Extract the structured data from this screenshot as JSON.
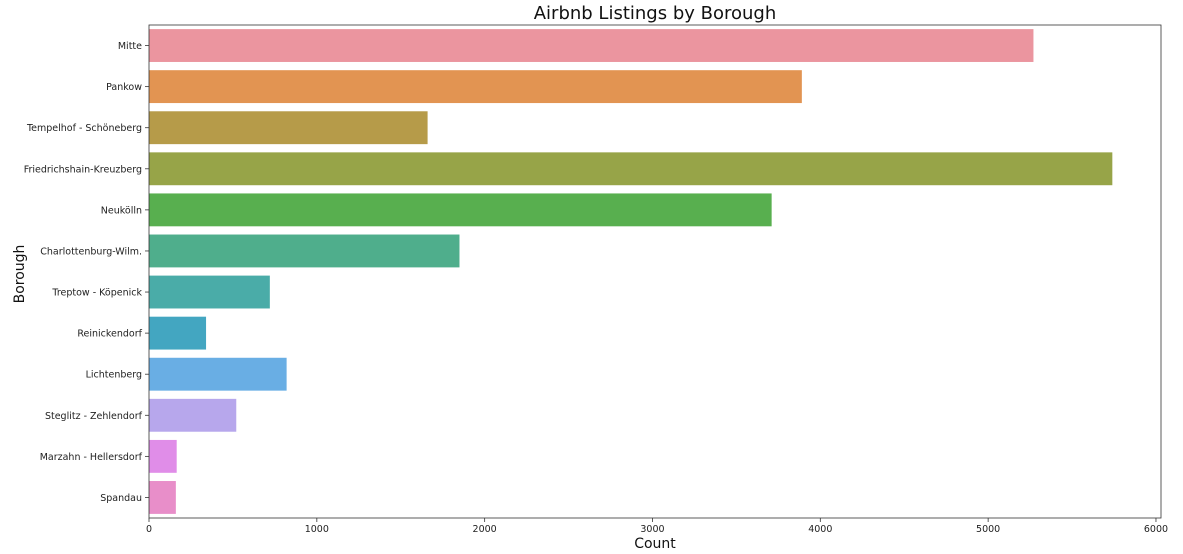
{
  "chart_data": {
    "type": "bar",
    "orientation": "horizontal",
    "title": "Airbnb Listings by Borough",
    "xlabel": "Count",
    "ylabel": "Borough",
    "xlim": [
      0,
      6030
    ],
    "xticks": [
      0,
      1000,
      2000,
      3000,
      4000,
      5000,
      6000
    ],
    "grid": false,
    "categories": [
      "Mitte",
      "Pankow",
      "Tempelhof - Schöneberg",
      "Friedrichshain-Kreuzberg",
      "Neukölln",
      "Charlottenburg-Wilm.",
      "Treptow - Köpenick",
      "Reinickendorf",
      "Lichtenberg",
      "Steglitz - Zehlendorf",
      "Marzahn - Hellersdorf",
      "Spandau"
    ],
    "values": [
      5270,
      3890,
      1660,
      5740,
      3710,
      1850,
      720,
      340,
      820,
      520,
      165,
      160
    ],
    "colors": [
      "#eb959f",
      "#e29452",
      "#b69b49",
      "#97a448",
      "#58af4f",
      "#4fae8c",
      "#4aaca8",
      "#43a6c1",
      "#69aee4",
      "#b7a7ec",
      "#e08de8",
      "#e88ec9"
    ]
  }
}
